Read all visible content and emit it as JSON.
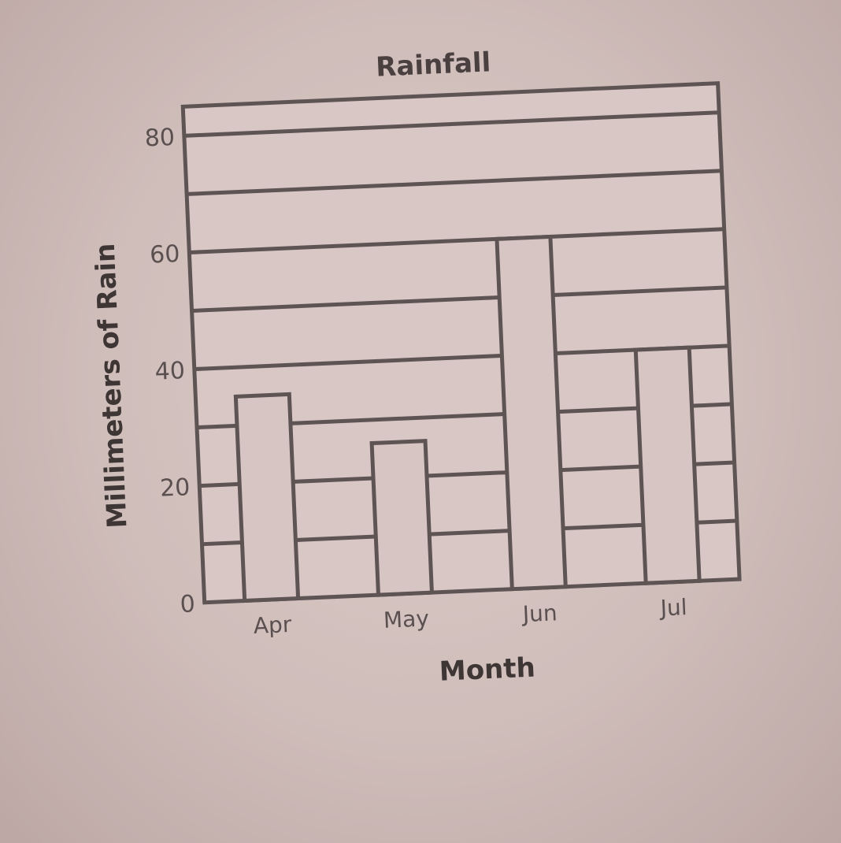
{
  "chart_data": {
    "type": "bar",
    "title": "Rainfall",
    "xlabel": "Month",
    "ylabel": "Millimeters of Rain",
    "categories": [
      "Apr",
      "May",
      "Jun",
      "Jul"
    ],
    "values": [
      35,
      26,
      60,
      40
    ],
    "ylim": [
      0,
      85
    ],
    "yticks": [
      0,
      20,
      40,
      60,
      80
    ],
    "grid_step": 10,
    "grid": true,
    "legend": "none"
  },
  "colors": {
    "ink": "#5e5454",
    "paper": "#d8c7c4",
    "bar_fill": "#d6c5c2"
  }
}
